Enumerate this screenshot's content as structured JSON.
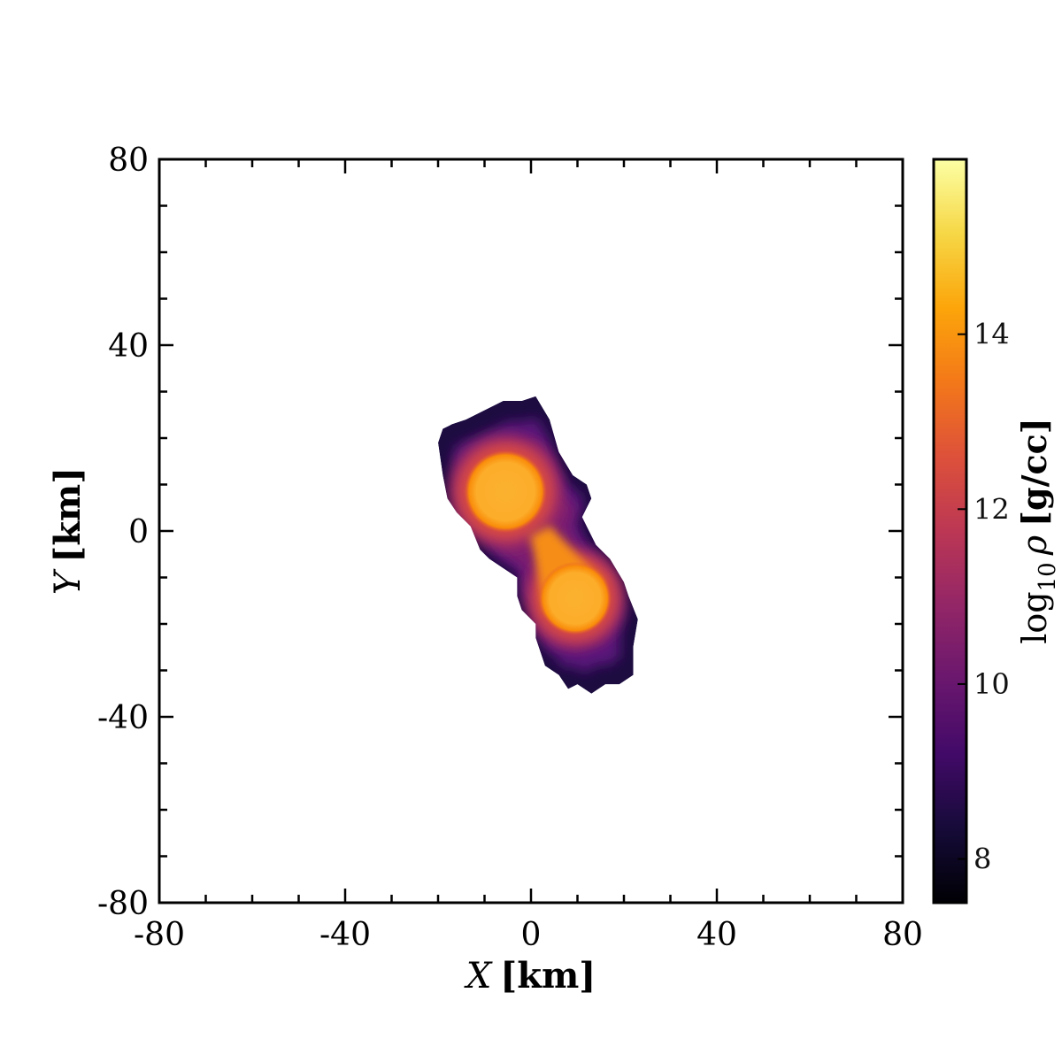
{
  "chart_data": {
    "type": "heatmap",
    "title": "",
    "xlabel": {
      "var": "X",
      "unit": "[km]"
    },
    "ylabel": {
      "var": "Y",
      "unit": "[km]"
    },
    "xlim": [
      -80,
      80
    ],
    "ylim": [
      -80,
      80
    ],
    "xticks": [
      -80,
      -40,
      0,
      40,
      80
    ],
    "yticks": [
      -80,
      -40,
      0,
      40,
      80
    ],
    "xtick_labels": [
      "-80",
      "-40",
      "0",
      "40",
      "80"
    ],
    "ytick_labels": [
      "-80",
      "-40",
      "0",
      "40",
      "80"
    ],
    "minor_tick_step": 10,
    "grid": false,
    "background": "#ffffff",
    "colormap": "inferno",
    "colorbar": {
      "label_prefix": "log",
      "label_sub": "10",
      "label_symbol": "ρ",
      "label_unit": "[g/cc]",
      "range": [
        7.5,
        16
      ],
      "ticks": [
        8,
        10,
        12,
        14
      ],
      "tick_labels": [
        "8",
        "10",
        "12",
        "14"
      ],
      "placement": "right"
    },
    "field": {
      "description_level_floor": 8,
      "envelope_polygon_km": [
        [
          -19,
          22
        ],
        [
          -20,
          19
        ],
        [
          -19,
          12
        ],
        [
          -18,
          7
        ],
        [
          -16,
          4
        ],
        [
          -13,
          1
        ],
        [
          -11,
          -4
        ],
        [
          -9,
          -6
        ],
        [
          -6,
          -8
        ],
        [
          -3,
          -10
        ],
        [
          -3,
          -14
        ],
        [
          -2,
          -17
        ],
        [
          1,
          -20
        ],
        [
          1,
          -23
        ],
        [
          3,
          -29
        ],
        [
          6,
          -31
        ],
        [
          8,
          -34
        ],
        [
          10,
          -33
        ],
        [
          13,
          -35
        ],
        [
          16,
          -33
        ],
        [
          19,
          -33
        ],
        [
          22,
          -31
        ],
        [
          22,
          -25
        ],
        [
          23,
          -19
        ],
        [
          21,
          -14
        ],
        [
          20,
          -11
        ],
        [
          17,
          -6
        ],
        [
          14,
          -3
        ],
        [
          11,
          3
        ],
        [
          13,
          7
        ],
        [
          12,
          10
        ],
        [
          9,
          12
        ],
        [
          6,
          17
        ],
        [
          4,
          24
        ],
        [
          1,
          29
        ],
        [
          -2,
          28
        ],
        [
          -6,
          28
        ],
        [
          -10,
          26
        ],
        [
          -14,
          24
        ],
        [
          -17,
          23
        ]
      ],
      "cores": [
        {
          "name": "upper-core",
          "x": -5.5,
          "y": 8.5,
          "radius_km": 8.5,
          "peak_log_rho": 15.5
        },
        {
          "name": "lower-core",
          "x": 9.5,
          "y": -14.5,
          "radius_km": 7.5,
          "peak_log_rho": 15.5
        }
      ],
      "bridge": {
        "from": [
          2,
          0
        ],
        "to": [
          9,
          -14
        ],
        "log_rho": 14
      }
    }
  }
}
